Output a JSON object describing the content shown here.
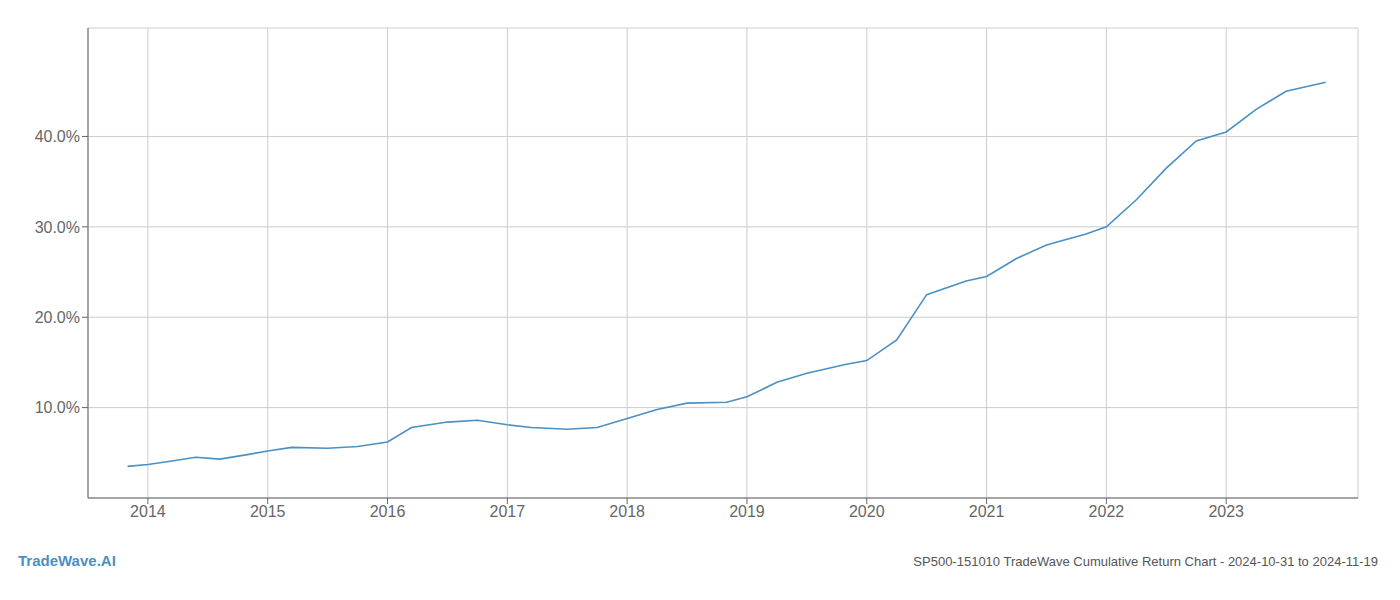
{
  "chart_data": {
    "type": "line",
    "title": "SP500-151010 TradeWave Cumulative Return Chart - 2024-10-31 to 2024-11-19",
    "annotations": [
      "TradeWave.AI"
    ],
    "x": [
      2013.83,
      2014.0,
      2014.2,
      2014.4,
      2014.6,
      2014.83,
      2015.0,
      2015.2,
      2015.5,
      2015.75,
      2016.0,
      2016.2,
      2016.5,
      2016.75,
      2017.0,
      2017.2,
      2017.5,
      2017.75,
      2018.0,
      2018.25,
      2018.5,
      2018.83,
      2019.0,
      2019.25,
      2019.5,
      2019.83,
      2020.0,
      2020.25,
      2020.5,
      2020.83,
      2021.0,
      2021.25,
      2021.5,
      2021.83,
      2022.0,
      2022.25,
      2022.5,
      2022.75,
      2023.0,
      2023.25,
      2023.5,
      2023.83
    ],
    "values": [
      3.5,
      3.7,
      4.1,
      4.5,
      4.3,
      4.8,
      5.2,
      5.6,
      5.5,
      5.7,
      6.2,
      7.8,
      8.4,
      8.6,
      8.1,
      7.8,
      7.6,
      7.8,
      8.8,
      9.8,
      10.5,
      10.6,
      11.2,
      12.8,
      13.8,
      14.8,
      15.2,
      17.5,
      22.5,
      24.0,
      24.5,
      26.5,
      28.0,
      29.2,
      30.0,
      33.0,
      36.5,
      39.5,
      40.5,
      43.0,
      45.0,
      46.0
    ],
    "color": "#4a90c4",
    "xlim": [
      2013.5,
      2024.1
    ],
    "xticks": [
      2014,
      2015,
      2016,
      2017,
      2018,
      2019,
      2020,
      2021,
      2022,
      2023
    ],
    "ylim": [
      0,
      52
    ],
    "yticks": [
      {
        "value": 10.0,
        "label": "10.0%"
      },
      {
        "value": 20.0,
        "label": "20.0%"
      },
      {
        "value": 30.0,
        "label": "30.0%"
      },
      {
        "value": 40.0,
        "label": "40.0%"
      }
    ],
    "grid": true
  }
}
